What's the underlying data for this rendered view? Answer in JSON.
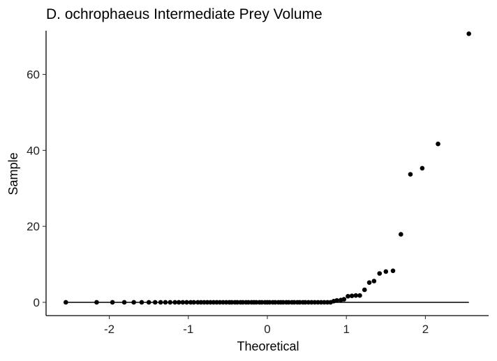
{
  "chart_data": {
    "type": "scatter",
    "title": "D. ochrophaeus Intermediate Prey Volume",
    "xlabel": "Theoretical",
    "ylabel": "Sample",
    "xlim": [
      -2.8,
      2.8
    ],
    "ylim": [
      -3.5,
      71.5
    ],
    "xticks": [
      -2,
      -1,
      0,
      1,
      2
    ],
    "xtick_labels": [
      "-2",
      "-1",
      "0",
      "1",
      "2"
    ],
    "yticks": [
      0,
      20,
      40,
      60
    ],
    "ytick_labels": [
      "0",
      "20",
      "40",
      "60"
    ],
    "grid": false,
    "reference_line": {
      "x": [
        -2.55,
        2.55
      ],
      "y": [
        0,
        0
      ]
    },
    "points": {
      "x": [
        -2.55,
        -2.16,
        -1.96,
        -1.81,
        -1.69,
        -1.59,
        -1.5,
        -1.42,
        -1.35,
        -1.29,
        -1.23,
        -1.17,
        -1.12,
        -1.07,
        -1.02,
        -0.97,
        -0.93,
        -0.88,
        -0.84,
        -0.8,
        -0.76,
        -0.72,
        -0.68,
        -0.64,
        -0.6,
        -0.56,
        -0.52,
        -0.48,
        -0.45,
        -0.41,
        -0.38,
        -0.34,
        -0.31,
        -0.27,
        -0.24,
        -0.2,
        -0.17,
        -0.14,
        -0.1,
        -0.07,
        -0.03,
        0.0,
        0.03,
        0.07,
        0.1,
        0.14,
        0.17,
        0.2,
        0.24,
        0.27,
        0.31,
        0.34,
        0.38,
        0.41,
        0.45,
        0.48,
        0.52,
        0.56,
        0.6,
        0.64,
        0.68,
        0.72,
        0.76,
        0.8,
        0.84,
        0.88,
        0.93,
        0.97,
        1.02,
        1.07,
        1.12,
        1.17,
        1.23,
        1.29,
        1.35,
        1.42,
        1.5,
        1.59,
        1.69,
        1.81,
        1.96,
        2.16,
        2.55
      ],
      "y": [
        0,
        0,
        0,
        0,
        0,
        0,
        0,
        0,
        0,
        0,
        0,
        0,
        0,
        0,
        0,
        0,
        0,
        0,
        0,
        0,
        0,
        0,
        0,
        0,
        0,
        0,
        0,
        0,
        0,
        0,
        0,
        0,
        0,
        0,
        0,
        0,
        0,
        0,
        0,
        0,
        0,
        0,
        0,
        0,
        0,
        0,
        0,
        0,
        0,
        0,
        0,
        0,
        0,
        0,
        0,
        0,
        0,
        0,
        0,
        0,
        0,
        0,
        0,
        0,
        0.3,
        0.5,
        0.6,
        0.8,
        1.6,
        1.7,
        1.8,
        1.8,
        3.3,
        5.2,
        5.6,
        7.6,
        8.1,
        8.3,
        17.9,
        33.7,
        35.3,
        41.7,
        70.7
      ]
    },
    "colors": {
      "points": "#000000",
      "line": "#000000",
      "axis": "#000000"
    }
  }
}
